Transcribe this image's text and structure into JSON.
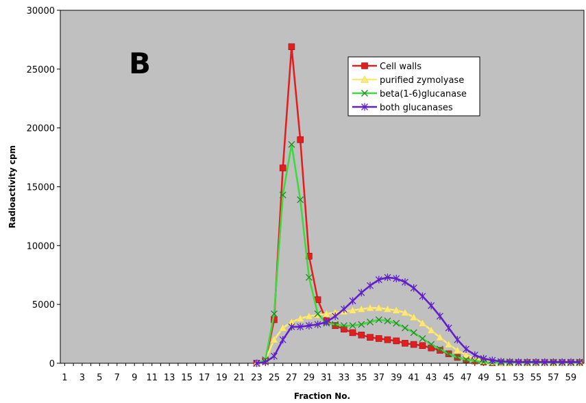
{
  "chart_data": {
    "type": "line",
    "panel_label": "B",
    "xlabel": "Fraction No.",
    "ylabel": "Radioactivity cpm",
    "xlim": [
      1,
      60
    ],
    "ylim": [
      0,
      30000
    ],
    "yticks": [
      0,
      5000,
      10000,
      15000,
      20000,
      25000,
      30000
    ],
    "yticklabels": [
      "0",
      "5000",
      "10000",
      "15000",
      "20000",
      "25000",
      "30000"
    ],
    "xticks": [
      1,
      3,
      5,
      7,
      9,
      11,
      13,
      15,
      17,
      19,
      21,
      23,
      25,
      27,
      29,
      31,
      33,
      35,
      37,
      39,
      41,
      43,
      45,
      47,
      49,
      51,
      53,
      55,
      57,
      59
    ],
    "xticklabels": [
      "1",
      "3",
      "5",
      "7",
      "9",
      "11",
      "13",
      "15",
      "17",
      "19",
      "21",
      "23",
      "25",
      "27",
      "29",
      "31",
      "33",
      "35",
      "37",
      "39",
      "41",
      "43",
      "45",
      "47",
      "49",
      "51",
      "53",
      "55",
      "57",
      "59"
    ],
    "grid": false,
    "legend_position": "top-right",
    "x": [
      23,
      24,
      25,
      26,
      27,
      28,
      29,
      30,
      31,
      32,
      33,
      34,
      35,
      36,
      37,
      38,
      39,
      40,
      41,
      42,
      43,
      44,
      45,
      46,
      47,
      48,
      49,
      50,
      51,
      52,
      53,
      54,
      55,
      56,
      57,
      58,
      59,
      60
    ],
    "series": [
      {
        "name": "Cell walls",
        "color": "#e02020",
        "marker": "square",
        "values": [
          0,
          200,
          3700,
          16600,
          26900,
          19000,
          9100,
          5400,
          3600,
          3200,
          2900,
          2600,
          2400,
          2200,
          2100,
          2000,
          1900,
          1700,
          1600,
          1500,
          1300,
          1100,
          800,
          500,
          300,
          200,
          100,
          50,
          50,
          50,
          50,
          50,
          50,
          50,
          50,
          50,
          50,
          50
        ]
      },
      {
        "name": "purified zymolyase",
        "color": "#fce97a",
        "marker": "triangle",
        "values": [
          0,
          300,
          2000,
          3000,
          3500,
          3800,
          4000,
          4100,
          4200,
          4300,
          4400,
          4500,
          4600,
          4700,
          4700,
          4600,
          4500,
          4300,
          3900,
          3400,
          2800,
          2200,
          1600,
          1100,
          700,
          400,
          200,
          100,
          50,
          50,
          50,
          50,
          50,
          50,
          50,
          50,
          50,
          50
        ]
      },
      {
        "name": "beta(1-6)glucanase",
        "color": "#40d840",
        "marker": "x",
        "values": [
          0,
          300,
          4200,
          14300,
          18600,
          13900,
          7300,
          4200,
          3400,
          3300,
          3200,
          3200,
          3300,
          3500,
          3700,
          3600,
          3400,
          3000,
          2600,
          2100,
          1600,
          1200,
          800,
          500,
          300,
          200,
          100,
          50,
          50,
          50,
          50,
          50,
          50,
          50,
          50,
          50,
          50,
          50
        ]
      },
      {
        "name": "both glucanases",
        "color": "#6020c8",
        "marker": "star",
        "values": [
          0,
          100,
          600,
          2000,
          3100,
          3100,
          3200,
          3300,
          3500,
          4000,
          4600,
          5300,
          6000,
          6600,
          7100,
          7300,
          7200,
          6900,
          6400,
          5700,
          4900,
          4000,
          3000,
          2000,
          1200,
          700,
          400,
          250,
          150,
          120,
          100,
          100,
          100,
          100,
          100,
          100,
          100,
          100
        ]
      }
    ]
  }
}
